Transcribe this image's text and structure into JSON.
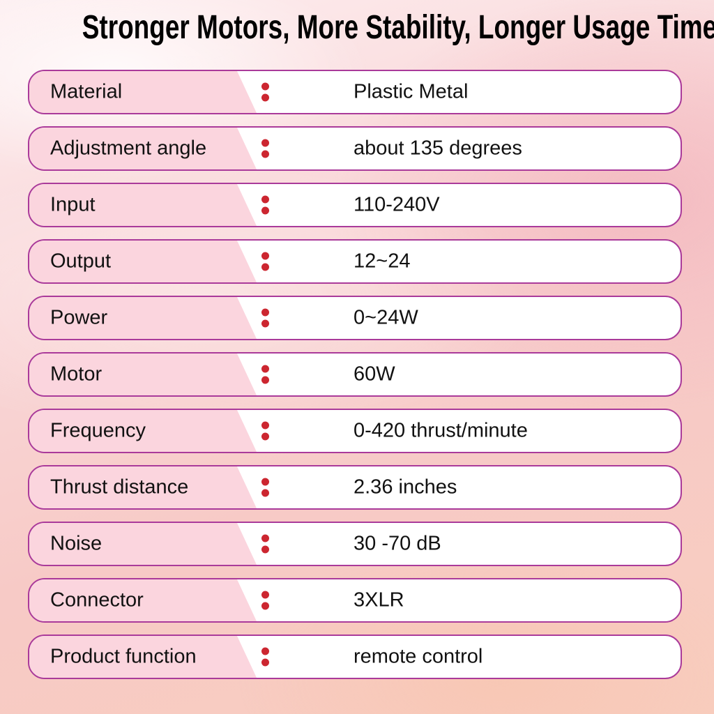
{
  "title": "Stronger Motors, More Stability, Longer Usage Time",
  "colors": {
    "border": "#aa3a9a",
    "row_pink": "#fbd5de",
    "dot_red": "#cc2630",
    "text": "#111111"
  },
  "rows": [
    {
      "label": "Material",
      "value": "Plastic Metal"
    },
    {
      "label": "Adjustment angle",
      "value": "about 135 degrees"
    },
    {
      "label": "Input",
      "value": "110-240V"
    },
    {
      "label": "Output",
      "value": "12~24"
    },
    {
      "label": "Power",
      "value": "0~24W"
    },
    {
      "label": "Motor",
      "value": "60W"
    },
    {
      "label": "Frequency",
      "value": "0-420 thrust/minute"
    },
    {
      "label": "Thrust distance",
      "value": "2.36 inches"
    },
    {
      "label": "Noise",
      "value": "30 -70 dB"
    },
    {
      "label": "Connector",
      "value": "3XLR"
    },
    {
      "label": "Product function",
      "value": "remote control"
    }
  ]
}
